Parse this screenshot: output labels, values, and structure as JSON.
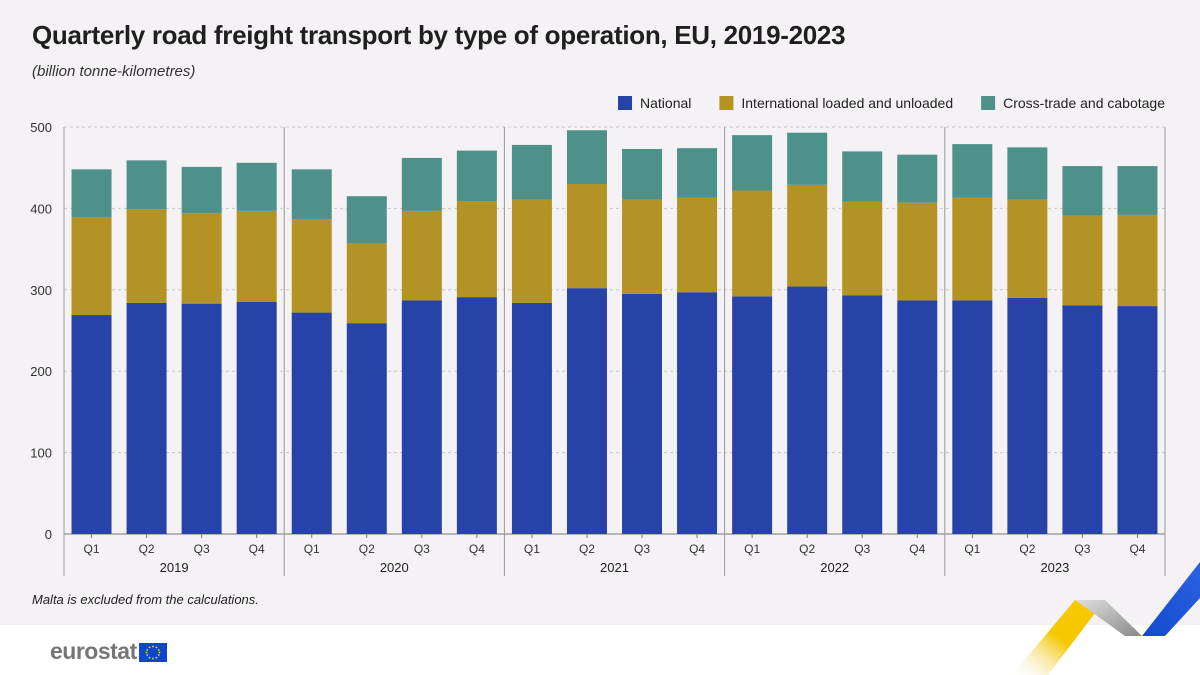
{
  "header": {
    "title": "Quarterly road freight transport by type of operation, EU, 2019-2023",
    "subtitle": "(billion tonne-kilometres)"
  },
  "note": "Malta is excluded from the calculations.",
  "footer": {
    "logo_text": "eurostat"
  },
  "colors": {
    "national": "#2743a8",
    "international": "#b29323",
    "cross": "#4e918a",
    "background": "#f4f2f4"
  },
  "chart_data": {
    "type": "bar",
    "stacked": true,
    "title": "Quarterly road freight transport by type of operation, EU, 2019-2023",
    "ylabel": "billion tonne-kilometres",
    "ylim": [
      0,
      500
    ],
    "yticks": [
      0,
      100,
      200,
      300,
      400,
      500
    ],
    "grid": true,
    "legend_position": "top-right",
    "groups": [
      "2019",
      "2020",
      "2021",
      "2022",
      "2023"
    ],
    "categories": [
      "Q1",
      "Q2",
      "Q3",
      "Q4",
      "Q1",
      "Q2",
      "Q3",
      "Q4",
      "Q1",
      "Q2",
      "Q3",
      "Q4",
      "Q1",
      "Q2",
      "Q3",
      "Q4",
      "Q1",
      "Q2",
      "Q3",
      "Q4"
    ],
    "series": [
      {
        "name": "National",
        "color": "#2743a8",
        "values": [
          269,
          284,
          283,
          285,
          272,
          259,
          287,
          291,
          284,
          302,
          295,
          297,
          292,
          304,
          293,
          287,
          287,
          290,
          281,
          280
        ]
      },
      {
        "name": "International loaded and unloaded",
        "color": "#b29323",
        "values": [
          120,
          115,
          111,
          112,
          115,
          98,
          110,
          118,
          127,
          128,
          116,
          116,
          130,
          125,
          115,
          120,
          126,
          121,
          110,
          112
        ]
      },
      {
        "name": "Cross-trade and cabotage",
        "color": "#4e918a",
        "values": [
          59,
          60,
          57,
          59,
          61,
          58,
          65,
          62,
          67,
          66,
          62,
          61,
          68,
          64,
          62,
          59,
          66,
          64,
          61,
          60
        ]
      }
    ]
  }
}
